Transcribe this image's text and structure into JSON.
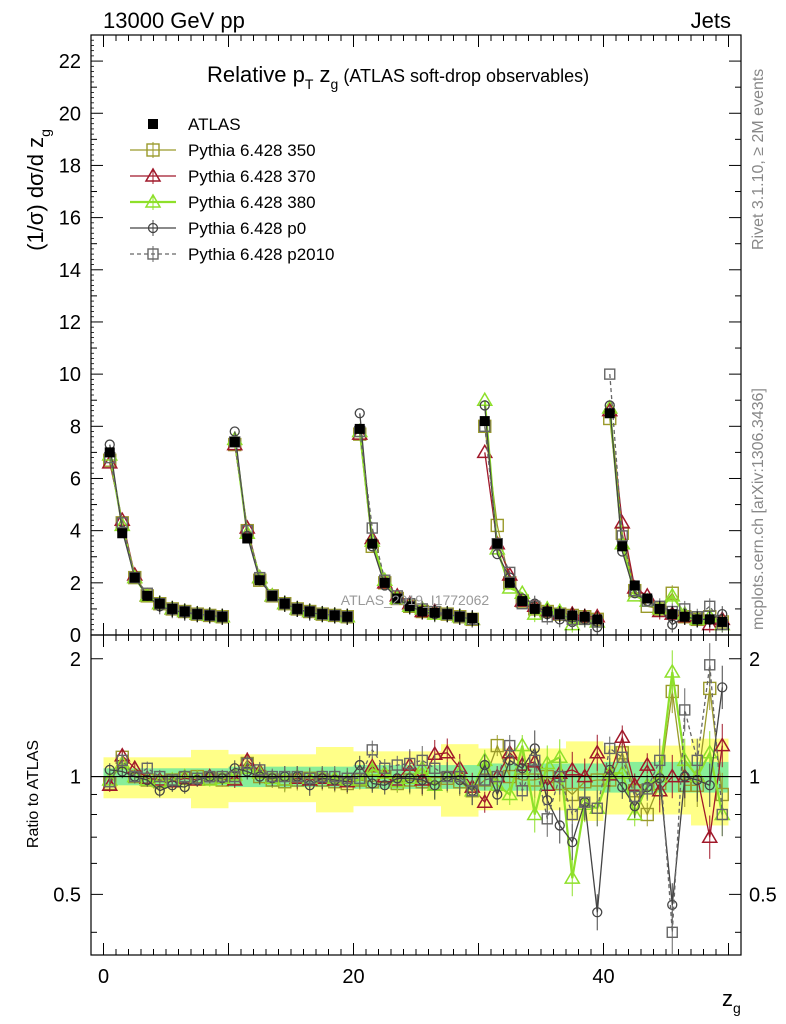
{
  "header": {
    "left": "13000 GeV pp",
    "right": "Jets"
  },
  "side": {
    "rivet": "Rivet 3.1.10, ≥ 2M events",
    "mcplots": "mcplots.cern.ch [arXiv:1306.3436]"
  },
  "main_panel": {
    "title_pre": "Relative p",
    "title_sub1": "T",
    "title_mid": " z",
    "title_sub2": "g",
    "title_post": " (ATLAS soft-drop observables)",
    "ylabel_pre": "(1/σ) dσ/d z",
    "ylabel_sub": "g",
    "watermark": "ATLAS_2019_I1772062"
  },
  "ratio_panel": {
    "ylabel": "Ratio to ATLAS"
  },
  "xaxis": {
    "label": "z",
    "label_sub": "g"
  },
  "legend": [
    {
      "label": "ATLAS",
      "color": "#000000",
      "marker": "filled-square"
    },
    {
      "label": "Pythia 6.428 350",
      "color": "#9a9a2a",
      "marker": "open-square"
    },
    {
      "label": "Pythia 6.428 370",
      "color": "#a0182a",
      "marker": "open-triangle"
    },
    {
      "label": "Pythia 6.428 380",
      "color": "#8ee02a",
      "marker": "open-triangle"
    },
    {
      "label": "Pythia 6.428 p0",
      "color": "#444444",
      "marker": "open-circle"
    },
    {
      "label": "Pythia 6.428 p2010",
      "color": "#666666",
      "marker": "open-square-dashed"
    }
  ],
  "chart_data": {
    "type": "line",
    "x_range": [
      -1,
      51
    ],
    "main_ylim": [
      0,
      23
    ],
    "main_yticks": [
      0,
      2,
      4,
      6,
      8,
      10,
      12,
      14,
      16,
      18,
      20,
      22
    ],
    "ratio_ylim": [
      0.35,
      2.3
    ],
    "ratio_yticks": [
      0.5,
      1,
      2
    ],
    "xticks": [
      0,
      20,
      40
    ],
    "x": [
      0.5,
      1.5,
      2.5,
      3.5,
      4.5,
      5.5,
      6.5,
      7.5,
      8.5,
      9.5,
      10.5,
      11.5,
      12.5,
      13.5,
      14.5,
      15.5,
      16.5,
      17.5,
      18.5,
      19.5,
      20.5,
      21.5,
      22.5,
      23.5,
      24.5,
      25.5,
      26.5,
      27.5,
      28.5,
      29.5,
      30.5,
      31.5,
      32.5,
      33.5,
      34.5,
      35.5,
      36.5,
      37.5,
      38.5,
      39.5,
      40.5,
      41.5,
      42.5,
      43.5,
      44.5,
      45.5,
      46.5,
      47.5,
      48.5,
      49.5
    ],
    "series": [
      {
        "name": "ATLAS",
        "values": [
          7.0,
          3.9,
          2.2,
          1.5,
          1.2,
          1.0,
          0.9,
          0.8,
          0.75,
          0.7,
          7.4,
          3.7,
          2.1,
          1.5,
          1.2,
          1.0,
          0.9,
          0.8,
          0.75,
          0.7,
          7.9,
          3.5,
          2.0,
          1.4,
          1.1,
          0.9,
          0.85,
          0.8,
          0.7,
          0.65,
          8.2,
          3.5,
          2.0,
          1.3,
          1.0,
          0.9,
          0.8,
          0.75,
          0.7,
          0.6,
          8.5,
          3.4,
          1.9,
          1.4,
          1.0,
          0.8,
          0.7,
          0.6,
          0.6,
          0.5
        ]
      },
      {
        "name": "Pythia 6.428 350",
        "values": [
          6.7,
          4.3,
          2.2,
          1.5,
          1.2,
          1.0,
          0.9,
          0.8,
          0.75,
          0.7,
          7.3,
          4.0,
          2.1,
          1.5,
          1.2,
          1.0,
          0.9,
          0.8,
          0.75,
          0.7,
          7.7,
          3.4,
          2.0,
          1.4,
          1.1,
          0.9,
          0.85,
          0.8,
          0.7,
          0.6,
          8.0,
          4.2,
          2.0,
          1.3,
          1.0,
          0.9,
          0.8,
          0.75,
          0.7,
          0.6,
          8.3,
          3.9,
          1.7,
          1.1,
          1.0,
          1.6,
          0.7,
          0.6,
          0.7,
          0.5
        ]
      },
      {
        "name": "Pythia 6.428 370",
        "values": [
          6.6,
          4.4,
          2.3,
          1.5,
          1.2,
          1.0,
          0.9,
          0.8,
          0.75,
          0.7,
          7.3,
          4.1,
          2.2,
          1.5,
          1.2,
          1.0,
          0.9,
          0.8,
          0.75,
          0.7,
          7.7,
          3.7,
          2.0,
          1.5,
          1.2,
          0.9,
          0.9,
          0.8,
          0.7,
          0.6,
          7.0,
          3.5,
          2.3,
          1.3,
          1.1,
          0.9,
          0.8,
          0.8,
          0.7,
          0.7,
          8.6,
          4.3,
          1.8,
          1.5,
          0.9,
          0.8,
          0.7,
          0.6,
          0.4,
          0.6
        ]
      },
      {
        "name": "Pythia 6.428 380",
        "values": [
          6.9,
          4.2,
          2.2,
          1.5,
          1.2,
          1.0,
          0.9,
          0.8,
          0.75,
          0.7,
          7.5,
          3.9,
          2.2,
          1.5,
          1.2,
          1.0,
          0.9,
          0.8,
          0.75,
          0.7,
          7.8,
          3.6,
          2.1,
          1.4,
          1.1,
          1.0,
          0.8,
          0.8,
          0.7,
          0.6,
          9.0,
          3.3,
          1.8,
          1.6,
          0.8,
          1.0,
          0.9,
          0.4,
          0.6,
          0.5,
          8.7,
          3.5,
          1.5,
          1.3,
          1.0,
          1.5,
          0.8,
          0.6,
          0.7,
          0.4
        ]
      },
      {
        "name": "Pythia 6.428 p0",
        "values": [
          7.3,
          4.0,
          2.2,
          1.5,
          1.1,
          0.95,
          0.85,
          0.8,
          0.75,
          0.7,
          7.8,
          3.8,
          2.1,
          1.5,
          1.2,
          1.0,
          0.85,
          0.8,
          0.75,
          0.7,
          8.5,
          3.4,
          1.9,
          1.4,
          1.1,
          0.9,
          0.8,
          0.8,
          0.7,
          0.6,
          8.8,
          3.1,
          2.2,
          1.4,
          1.2,
          0.8,
          0.6,
          0.5,
          0.6,
          0.3,
          8.8,
          3.2,
          1.6,
          1.3,
          1.0,
          0.4,
          0.7,
          0.6,
          0.6,
          0.8
        ]
      },
      {
        "name": "Pythia 6.428 p2010",
        "values": [
          6.8,
          4.3,
          2.2,
          1.6,
          1.2,
          1.0,
          0.9,
          0.8,
          0.75,
          0.7,
          7.4,
          4.0,
          2.2,
          1.5,
          1.2,
          1.0,
          0.9,
          0.8,
          0.75,
          0.7,
          7.8,
          4.1,
          2.1,
          1.5,
          1.2,
          1.0,
          0.9,
          0.8,
          0.7,
          0.6,
          8.0,
          3.5,
          2.4,
          1.2,
          1.1,
          0.7,
          0.8,
          0.6,
          0.6,
          0.5,
          10.0,
          3.8,
          1.7,
          1.3,
          1.1,
          0.9,
          1.0,
          0.7,
          1.1,
          0.4
        ]
      }
    ],
    "ratio_series": [
      {
        "name": "Pythia 6.428 350",
        "values": [
          0.96,
          1.12,
          1.0,
          0.98,
          0.97,
          0.98,
          0.99,
          1.0,
          0.99,
          0.98,
          0.99,
          1.08,
          1.0,
          0.98,
          0.97,
          0.98,
          0.99,
          0.98,
          0.97,
          0.96,
          0.98,
          0.97,
          1.0,
          0.96,
          0.98,
          0.97,
          0.96,
          0.99,
          0.97,
          0.92,
          0.98,
          1.2,
          1.0,
          0.98,
          0.98,
          1.0,
          0.96,
          0.9,
          0.97,
          0.98,
          0.98,
          1.15,
          0.92,
          0.8,
          0.96,
          1.65,
          0.95,
          0.95,
          1.68,
          0.9
        ]
      },
      {
        "name": "Pythia 6.428 370",
        "values": [
          0.95,
          1.13,
          1.05,
          0.99,
          0.98,
          0.97,
          0.99,
          0.98,
          1.0,
          0.99,
          0.98,
          1.1,
          1.03,
          0.99,
          0.98,
          0.99,
          0.98,
          0.99,
          0.98,
          0.97,
          0.98,
          1.06,
          1.0,
          0.98,
          1.07,
          0.98,
          1.14,
          1.15,
          1.05,
          0.94,
          0.86,
          1.0,
          1.15,
          1.07,
          1.09,
          0.95,
          1.02,
          1.04,
          1.0,
          1.15,
          1.01,
          1.26,
          0.95,
          1.07,
          0.92,
          1.0,
          1.0,
          1.0,
          0.7,
          1.2
        ]
      },
      {
        "name": "Pythia 6.428 380",
        "values": [
          0.98,
          1.08,
          1.0,
          0.98,
          0.97,
          0.98,
          1.0,
          0.99,
          0.98,
          0.99,
          1.01,
          1.05,
          1.02,
          0.99,
          0.98,
          1.0,
          0.99,
          1.0,
          0.99,
          0.98,
          0.98,
          1.04,
          1.02,
          0.97,
          0.99,
          1.05,
          0.95,
          1.0,
          1.02,
          0.92,
          1.1,
          0.95,
          0.9,
          1.2,
          0.8,
          1.08,
          1.12,
          0.55,
          0.85,
          0.83,
          1.02,
          1.02,
          0.8,
          0.95,
          1.0,
          1.85,
          1.1,
          1.0,
          1.15,
          0.8
        ]
      },
      {
        "name": "Pythia 6.428 p0",
        "values": [
          1.04,
          1.03,
          1.0,
          0.98,
          0.92,
          0.95,
          0.94,
          0.98,
          1.0,
          0.99,
          1.05,
          1.03,
          1.0,
          0.99,
          1.0,
          1.0,
          0.95,
          0.99,
          0.98,
          0.97,
          1.07,
          0.96,
          0.95,
          0.99,
          0.99,
          0.98,
          0.95,
          1.0,
          0.98,
          0.92,
          1.07,
          0.9,
          1.1,
          1.05,
          1.18,
          0.87,
          0.75,
          0.68,
          0.86,
          0.45,
          1.04,
          0.94,
          0.84,
          0.94,
          0.99,
          0.47,
          1.0,
          0.98,
          0.95,
          1.69
        ]
      },
      {
        "name": "Pythia 6.428 p2010",
        "values": [
          0.97,
          1.1,
          1.0,
          1.05,
          1.0,
          0.98,
          1.0,
          0.99,
          1.0,
          1.0,
          1.0,
          1.08,
          1.04,
          1.0,
          1.0,
          1.0,
          0.99,
          1.0,
          1.0,
          0.99,
          0.99,
          1.17,
          1.05,
          1.07,
          1.08,
          1.1,
          1.05,
          1.0,
          1.0,
          0.92,
          0.98,
          1.0,
          1.2,
          0.92,
          1.1,
          0.78,
          1.0,
          0.8,
          0.86,
          0.83,
          1.18,
          1.12,
          0.89,
          0.93,
          1.1,
          0.4,
          1.48,
          1.1,
          1.93,
          0.8
        ]
      }
    ]
  }
}
